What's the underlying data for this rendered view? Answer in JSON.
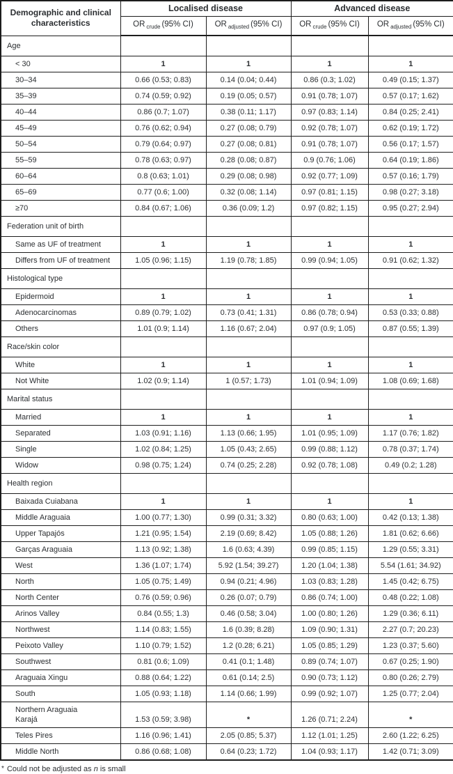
{
  "table": {
    "header": {
      "characteristics": "Demographic and clinical characteristics",
      "localised": "Localised disease",
      "advanced": "Advanced disease",
      "or": "OR",
      "crude": "crude",
      "adjusted": "adjusted",
      "ci": "(95% CI)"
    },
    "rows": [
      {
        "type": "section",
        "label": "Age"
      },
      {
        "type": "data",
        "label": "< 30",
        "values": [
          "1",
          "1",
          "1",
          "1"
        ]
      },
      {
        "type": "data",
        "label": "30–34",
        "values": [
          "0.66 (0.53; 0.83)",
          "0.14 (0.04; 0.44)",
          "0.86 (0.3; 1.02)",
          "0.49 (0.15; 1.37)"
        ]
      },
      {
        "type": "data",
        "label": "35–39",
        "values": [
          "0.74 (0.59; 0.92)",
          "0.19 (0.05; 0.57)",
          "0.91 (0.78; 1.07)",
          "0.57 (0.17; 1.62)"
        ]
      },
      {
        "type": "data",
        "label": "40–44",
        "values": [
          "0.86 (0.7; 1.07)",
          "0.38 (0.11; 1.17)",
          "0.97 (0.83; 1.14)",
          "0.84 (0.25; 2.41)"
        ]
      },
      {
        "type": "data",
        "label": "45–49",
        "values": [
          "0.76 (0.62; 0.94)",
          "0.27 (0.08; 0.79)",
          "0.92 (0.78; 1.07)",
          "0.62 (0.19; 1.72)"
        ]
      },
      {
        "type": "data",
        "label": "50–54",
        "values": [
          "0.79 (0.64; 0.97)",
          "0.27 (0.08; 0.81)",
          "0.91 (0.78; 1.07)",
          "0.56 (0.17; 1.57)"
        ]
      },
      {
        "type": "data",
        "label": "55–59",
        "values": [
          "0.78 (0.63; 0.97)",
          "0.28 (0.08; 0.87)",
          "0.9 (0.76; 1.06)",
          "0.64 (0.19; 1.86)"
        ]
      },
      {
        "type": "data",
        "label": "60–64",
        "values": [
          "0.8 (0.63; 1.01)",
          "0.29 (0.08; 0.98)",
          "0.92 (0.77; 1.09)",
          "0.57 (0.16; 1.79)"
        ]
      },
      {
        "type": "data",
        "label": "65–69",
        "values": [
          "0.77 (0.6; 1.00)",
          "0.32 (0.08; 1.14)",
          "0.97 (0.81; 1.15)",
          "0.98 (0.27; 3.18)"
        ]
      },
      {
        "type": "data",
        "label": "≥70",
        "values": [
          "0.84 (0.67; 1.06)",
          "0.36 (0.09; 1.2)",
          "0.97 (0.82; 1.15)",
          "0.95 (0.27; 2.94)"
        ]
      },
      {
        "type": "section",
        "label": "Federation unit of birth"
      },
      {
        "type": "data",
        "label": "Same as UF of treatment",
        "values": [
          "1",
          "1",
          "1",
          "1"
        ]
      },
      {
        "type": "data",
        "label": "Differs from UF of treatment",
        "values": [
          "1.05 (0.96; 1.15)",
          "1.19 (0.78; 1.85)",
          "0.99 (0.94; 1.05)",
          "0.91 (0.62; 1.32)"
        ]
      },
      {
        "type": "section",
        "label": "Histological type"
      },
      {
        "type": "data",
        "label": "Epidermoid",
        "values": [
          "1",
          "1",
          "1",
          "1"
        ]
      },
      {
        "type": "data",
        "label": "Adenocarcinomas",
        "values": [
          "0.89 (0.79; 1.02)",
          "0.73 (0.41; 1.31)",
          "0.86 (0.78; 0.94)",
          "0.53 (0.33; 0.88)"
        ]
      },
      {
        "type": "data",
        "label": "Others",
        "values": [
          "1.01 (0.9; 1.14)",
          "1.16 (0.67; 2.04)",
          "0.97 (0.9; 1.05)",
          "0.87 (0.55; 1.39)"
        ]
      },
      {
        "type": "section",
        "label": "Race/skin color"
      },
      {
        "type": "data",
        "label": "White",
        "values": [
          "1",
          "1",
          "1",
          "1"
        ]
      },
      {
        "type": "data",
        "label": "Not White",
        "values": [
          "1.02 (0.9; 1.14)",
          "1 (0.57; 1.73)",
          "1.01 (0.94; 1.09)",
          "1.08 (0.69; 1.68)"
        ]
      },
      {
        "type": "section",
        "label": "Marital status"
      },
      {
        "type": "data",
        "label": "Married",
        "values": [
          "1",
          "1",
          "1",
          "1"
        ]
      },
      {
        "type": "data",
        "label": "Separated",
        "values": [
          "1.03 (0.91; 1.16)",
          "1.13 (0.66; 1.95)",
          "1.01 (0.95; 1.09)",
          "1.17 (0.76; 1.82)"
        ]
      },
      {
        "type": "data",
        "label": "Single",
        "values": [
          "1.02 (0.84; 1.25)",
          "1.05 (0.43; 2.65)",
          "0.99 (0.88; 1.12)",
          "0.78 (0.37; 1.74)"
        ]
      },
      {
        "type": "data",
        "label": "Widow",
        "values": [
          "0.98 (0.75; 1.24)",
          "0.74 (0.25; 2.28)",
          "0.92 (0.78; 1.08)",
          "0.49 (0.2; 1.28)"
        ]
      },
      {
        "type": "section",
        "label": "Health region"
      },
      {
        "type": "data",
        "label": "Baixada Cuiabana",
        "values": [
          "1",
          "1",
          "1",
          "1"
        ]
      },
      {
        "type": "data",
        "label": "Middle Araguaia",
        "values": [
          "1.00 (0.77; 1.30)",
          "0.99 (0.31; 3.32)",
          "0.80 (0.63; 1.00)",
          "0.42 (0.13; 1.38)"
        ]
      },
      {
        "type": "data",
        "label": "Upper Tapajós",
        "values": [
          "1.21 (0.95; 1.54)",
          "2.19 (0.69; 8.42)",
          "1.05 (0.88; 1.26)",
          "1.81 (0.62; 6.66)"
        ]
      },
      {
        "type": "data",
        "label": "Garças Araguaia",
        "values": [
          "1.13 (0.92; 1.38)",
          "1.6 (0.63; 4.39)",
          "0.99 (0.85; 1.15)",
          "1.29 (0.55; 3.31)"
        ]
      },
      {
        "type": "data",
        "label": "West",
        "values": [
          "1.36 (1.07; 1.74)",
          "5.92 (1.54; 39.27)",
          "1.20 (1.04; 1.38)",
          "5.54 (1.61; 34.92)"
        ]
      },
      {
        "type": "data",
        "label": "North",
        "values": [
          "1.05 (0.75; 1.49)",
          "0.94 (0.21; 4.96)",
          "1.03 (0.83; 1.28)",
          "1.45 (0.42; 6.75)"
        ]
      },
      {
        "type": "data",
        "label": "North Center",
        "values": [
          "0.76 (0.59; 0.96)",
          "0.26 (0.07; 0.79)",
          "0.86 (0.74; 1.00)",
          "0.48 (0.22; 1.08)"
        ]
      },
      {
        "type": "data",
        "label": "Arinos Valley",
        "values": [
          "0.84 (0.55; 1.3)",
          "0.46 (0.58; 3.04)",
          "1.00 (0.80; 1.26)",
          "1.29 (0.36; 6.11)"
        ]
      },
      {
        "type": "data",
        "label": "Northwest",
        "values": [
          "1.14 (0.83; 1.55)",
          "1.6 (0.39; 8.28)",
          "1.09 (0.90; 1.31)",
          "2.27 (0.7; 20.23)"
        ]
      },
      {
        "type": "data",
        "label": "Peixoto Valley",
        "values": [
          "1.10 (0.79; 1.52)",
          "1.2 (0.28; 6.21)",
          "1.05 (0.85; 1.29)",
          "1.23 (0.37; 5.60)"
        ]
      },
      {
        "type": "data",
        "label": "Southwest",
        "values": [
          "0.81 (0.6; 1.09)",
          "0.41 (0.1; 1.48)",
          "0.89 (0.74; 1.07)",
          "0.67 (0.25; 1.90)"
        ]
      },
      {
        "type": "data",
        "label": "Araguaia Xingu",
        "values": [
          "0.88 (0.64; 1.22)",
          "0.61 (0.14; 2.5)",
          "0.90 (0.73; 1.12)",
          "0.80 (0.26; 2.79)"
        ]
      },
      {
        "type": "data",
        "label": "South",
        "values": [
          "1.05 (0.93; 1.18)",
          "1.14 (0.66; 1.99)",
          "0.99 (0.92; 1.07)",
          "1.25 (0.77; 2.04)"
        ]
      },
      {
        "type": "data",
        "label": "Northern Araguaia\nKarajá",
        "two_line": true,
        "values": [
          "1.53 (0.59; 3.98)",
          "*",
          "1.26 (0.71; 2.24)",
          "*"
        ]
      },
      {
        "type": "data",
        "label": "Teles Pires",
        "values": [
          "1.16 (0.96; 1.41)",
          "2.05 (0.85; 5.37)",
          "1.12 (1.01; 1.25)",
          "2.60 (1.22; 6.25)"
        ]
      },
      {
        "type": "data",
        "label": "Middle North",
        "values": [
          "0.86 (0.68; 1.08)",
          "0.64 (0.23; 1.72)",
          "1.04 (0.93; 1.17)",
          "1.42 (0.71; 3.09)"
        ]
      }
    ]
  },
  "footnote": {
    "marker": "*",
    "prefix": " Could not be adjusted as ",
    "italic_term": "n",
    "suffix": " is small"
  }
}
